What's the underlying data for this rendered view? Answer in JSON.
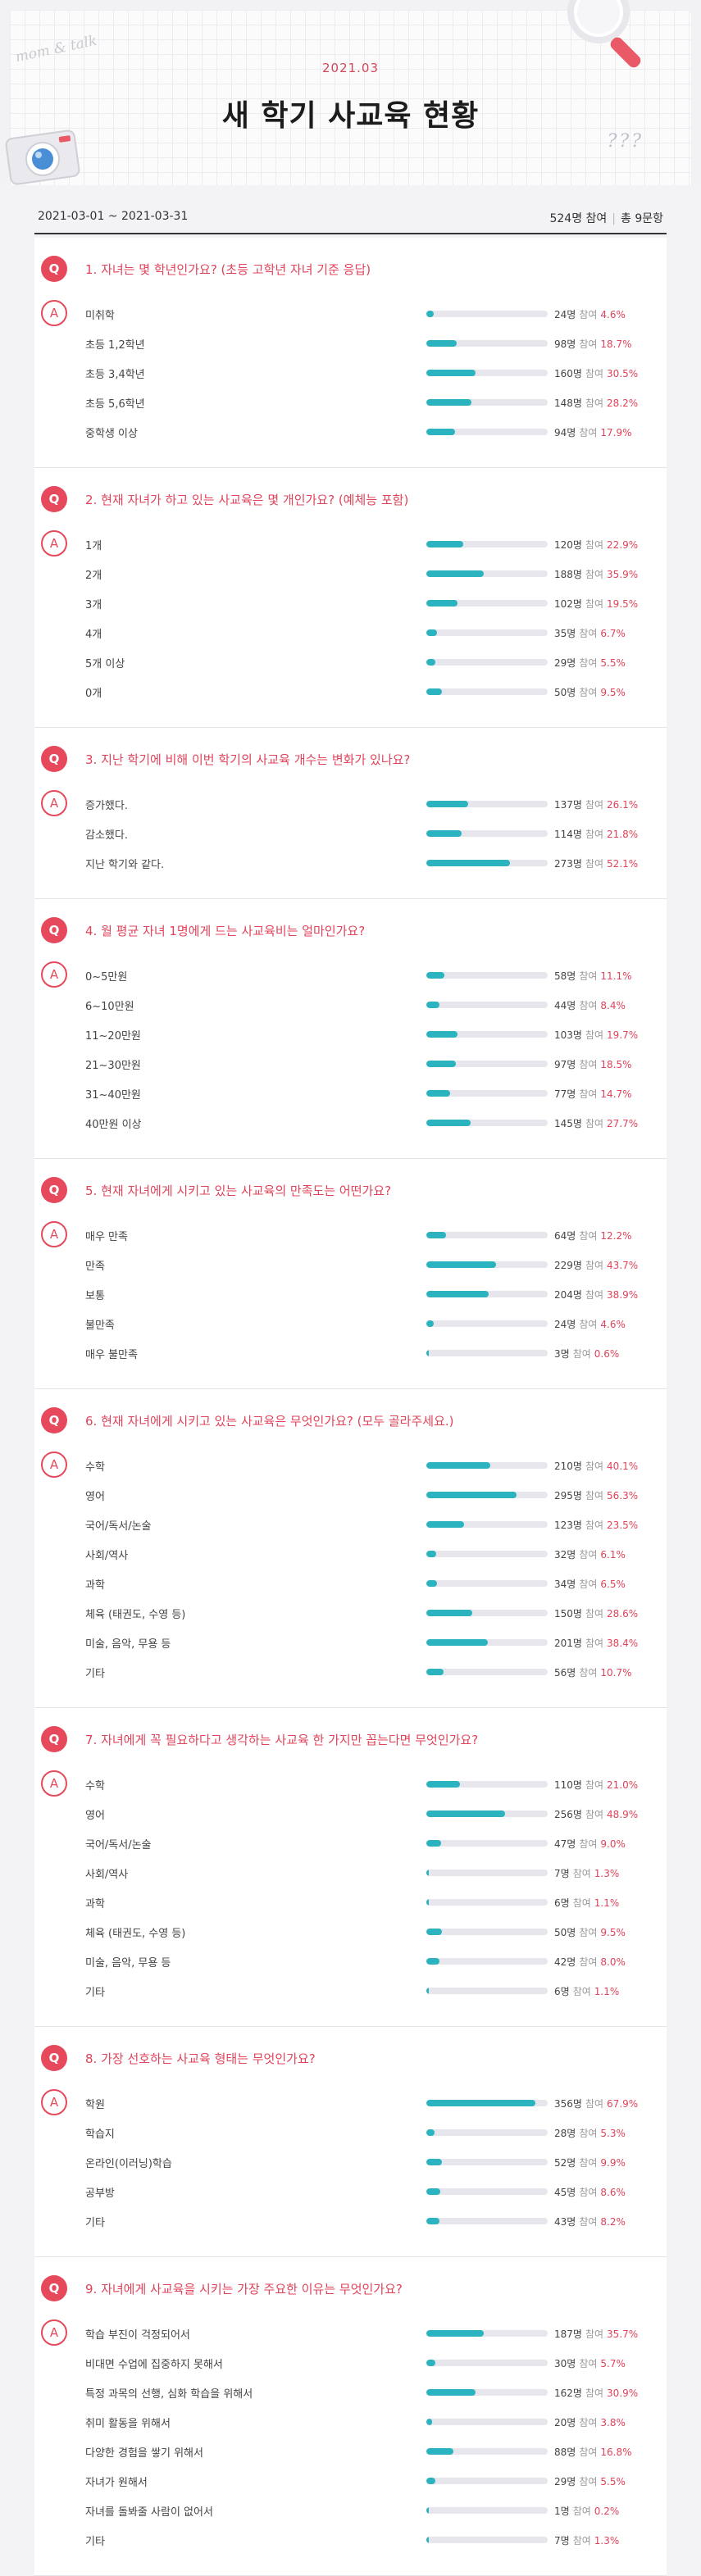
{
  "header": {
    "month": "2021.03",
    "title": "새 학기 사교육 현황",
    "deco_script": "mom & talk",
    "deco_marks": "???"
  },
  "info": {
    "date_range": "2021-03-01 ~ 2021-03-31",
    "participants": "524명 참여",
    "questions_total": "총 9문항"
  },
  "labels": {
    "q_badge": "Q",
    "a_badge": "A",
    "unit": "참여"
  },
  "colors": {
    "accent": "#e6495b",
    "bar": "#2bb4c0",
    "track": "#e6e6ec"
  },
  "chart_data": {
    "type": "bar",
    "questions": [
      {
        "title": "1. 자녀는 몇 학년인가요? (초등 고학년 자녀 기준 응답)",
        "categories": [
          "미취학",
          "초등 1,2학년",
          "초등 3,4학년",
          "초등 5,6학년",
          "중학생 이상"
        ],
        "counts": [
          "24명",
          "98명",
          "160명",
          "148명",
          "94명"
        ],
        "percents": [
          "4.6%",
          "18.7%",
          "30.5%",
          "28.2%",
          "17.9%"
        ],
        "values": [
          4.6,
          18.7,
          30.5,
          28.2,
          17.9
        ]
      },
      {
        "title": "2. 현재 자녀가 하고 있는 사교육은 몇 개인가요? (예체능 포함)",
        "categories": [
          "1개",
          "2개",
          "3개",
          "4개",
          "5개 이상",
          "0개"
        ],
        "counts": [
          "120명",
          "188명",
          "102명",
          "35명",
          "29명",
          "50명"
        ],
        "percents": [
          "22.9%",
          "35.9%",
          "19.5%",
          "6.7%",
          "5.5%",
          "9.5%"
        ],
        "values": [
          22.9,
          35.9,
          19.5,
          6.7,
          5.5,
          9.5
        ]
      },
      {
        "title": "3. 지난 학기에 비해 이번 학기의 사교육 개수는 변화가 있나요?",
        "categories": [
          "증가했다.",
          "감소했다.",
          "지난 학기와 같다."
        ],
        "counts": [
          "137명",
          "114명",
          "273명"
        ],
        "percents": [
          "26.1%",
          "21.8%",
          "52.1%"
        ],
        "values": [
          26.1,
          21.8,
          52.1
        ]
      },
      {
        "title": "4. 월 평균 자녀 1명에게 드는 사교육비는 얼마인가요?",
        "categories": [
          "0~5만원",
          "6~10만원",
          "11~20만원",
          "21~30만원",
          "31~40만원",
          "40만원 이상"
        ],
        "counts": [
          "58명",
          "44명",
          "103명",
          "97명",
          "77명",
          "145명"
        ],
        "percents": [
          "11.1%",
          "8.4%",
          "19.7%",
          "18.5%",
          "14.7%",
          "27.7%"
        ],
        "values": [
          11.1,
          8.4,
          19.7,
          18.5,
          14.7,
          27.7
        ]
      },
      {
        "title": "5. 현재 자녀에게 시키고 있는 사교육의 만족도는 어떤가요?",
        "categories": [
          "매우 만족",
          "만족",
          "보통",
          "불만족",
          "매우 불만족"
        ],
        "counts": [
          "64명",
          "229명",
          "204명",
          "24명",
          "3명"
        ],
        "percents": [
          "12.2%",
          "43.7%",
          "38.9%",
          "4.6%",
          "0.6%"
        ],
        "values": [
          12.2,
          43.7,
          38.9,
          4.6,
          0.6
        ]
      },
      {
        "title": "6. 현재 자녀에게 시키고 있는 사교육은 무엇인가요? (모두 골라주세요.)",
        "categories": [
          "수학",
          "영어",
          "국어/독서/논술",
          "사회/역사",
          "과학",
          "체육 (태권도, 수영 등)",
          "미술, 음악, 무용 등",
          "기타"
        ],
        "counts": [
          "210명",
          "295명",
          "123명",
          "32명",
          "34명",
          "150명",
          "201명",
          "56명"
        ],
        "percents": [
          "40.1%",
          "56.3%",
          "23.5%",
          "6.1%",
          "6.5%",
          "28.6%",
          "38.4%",
          "10.7%"
        ],
        "values": [
          40.1,
          56.3,
          23.5,
          6.1,
          6.5,
          28.6,
          38.4,
          10.7
        ]
      },
      {
        "title": "7. 자녀에게 꼭 필요하다고 생각하는 사교육 한 가지만 꼽는다면 무엇인가요?",
        "categories": [
          "수학",
          "영어",
          "국어/독서/논술",
          "사회/역사",
          "과학",
          "체육 (태권도, 수영 등)",
          "미술, 음악, 무용 등",
          "기타"
        ],
        "counts": [
          "110명",
          "256명",
          "47명",
          "7명",
          "6명",
          "50명",
          "42명",
          "6명"
        ],
        "percents": [
          "21.0%",
          "48.9%",
          "9.0%",
          "1.3%",
          "1.1%",
          "9.5%",
          "8.0%",
          "1.1%"
        ],
        "values": [
          21.0,
          48.9,
          9.0,
          1.3,
          1.1,
          9.5,
          8.0,
          1.1
        ]
      },
      {
        "title": "8. 가장 선호하는 사교육 형태는 무엇인가요?",
        "categories": [
          "학원",
          "학습지",
          "온라인(이러닝)학습",
          "공부방",
          "기타"
        ],
        "counts": [
          "356명",
          "28명",
          "52명",
          "45명",
          "43명"
        ],
        "percents": [
          "67.9%",
          "5.3%",
          "9.9%",
          "8.6%",
          "8.2%"
        ],
        "values": [
          67.9,
          5.3,
          9.9,
          8.6,
          8.2
        ]
      },
      {
        "title": "9. 자녀에게 사교육을 시키는 가장 주요한 이유는 무엇인가요?",
        "categories": [
          "학습 부진이 걱정되어서",
          "비대면 수업에 집중하지 못해서",
          "특정 과목의 선행, 심화 학습을 위해서",
          "취미 활동을 위해서",
          "다양한 경험을 쌓기 위해서",
          "자녀가 원해서",
          "자녀를 돌봐줄 사람이 없어서",
          "기타"
        ],
        "counts": [
          "187명",
          "30명",
          "162명",
          "20명",
          "88명",
          "29명",
          "1명",
          "7명"
        ],
        "percents": [
          "35.7%",
          "5.7%",
          "30.9%",
          "3.8%",
          "16.8%",
          "5.5%",
          "0.2%",
          "1.3%"
        ],
        "values": [
          35.7,
          5.7,
          30.9,
          3.8,
          16.8,
          5.5,
          0.2,
          1.3
        ]
      }
    ]
  }
}
